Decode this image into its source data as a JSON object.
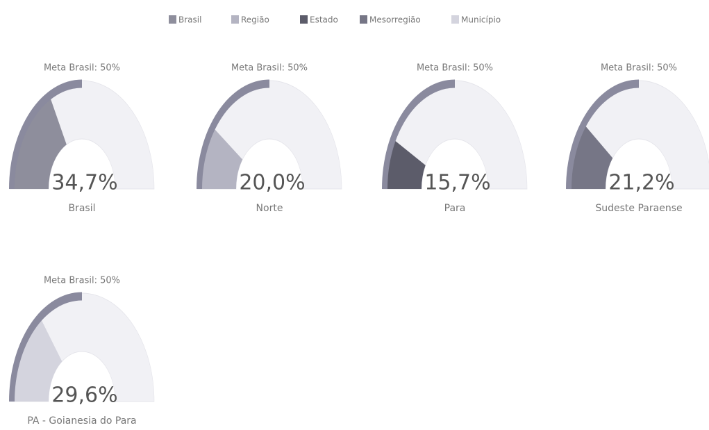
{
  "legend": [
    {
      "name": "Brasil",
      "color": "#8e8e9c"
    },
    {
      "name": "Região",
      "color": "#b4b4c2"
    },
    {
      "name": "Estado",
      "color": "#5c5c6a"
    },
    {
      "name": "Mesorregião",
      "color": "#767686"
    },
    {
      "name": "Município",
      "color": "#d4d4de"
    }
  ],
  "chart_data": [
    {
      "type": "gauge",
      "name": "Brasil",
      "values": [
        34.7
      ],
      "value_labels": [
        "34,7%"
      ],
      "color": "#8e8e9c",
      "target": 50,
      "target_label": "Meta Brasil: 50%",
      "ylim": [
        0,
        100
      ]
    },
    {
      "type": "gauge",
      "name": "Norte",
      "values": [
        20.0
      ],
      "value_labels": [
        "20,0%"
      ],
      "color": "#b4b4c2",
      "target": 50,
      "target_label": "Meta Brasil: 50%",
      "ylim": [
        0,
        100
      ]
    },
    {
      "type": "gauge",
      "name": "Para",
      "values": [
        15.7
      ],
      "value_labels": [
        "15,7%"
      ],
      "color": "#5c5c6a",
      "target": 50,
      "target_label": "Meta Brasil: 50%",
      "ylim": [
        0,
        100
      ]
    },
    {
      "type": "gauge",
      "name": "Sudeste Paraense",
      "values": [
        21.2
      ],
      "value_labels": [
        "21,2%"
      ],
      "color": "#767686",
      "target": 50,
      "target_label": "Meta Brasil: 50%",
      "ylim": [
        0,
        100
      ]
    },
    {
      "type": "gauge",
      "name": "PA - Goianesia do Para",
      "values": [
        29.6
      ],
      "value_labels": [
        "29,6%"
      ],
      "color": "#d4d4de",
      "target": 50,
      "target_label": "Meta Brasil: 50%",
      "ylim": [
        0,
        100
      ]
    }
  ]
}
